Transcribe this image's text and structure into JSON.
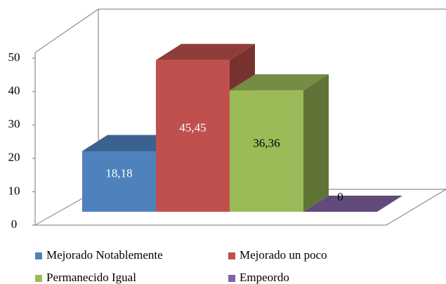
{
  "chart_data": {
    "type": "bar3d",
    "series": [
      {
        "name": "Mejorado Notablemente",
        "color": "#4f81bd",
        "values": [
          18.18
        ],
        "value_labels": [
          "18,18"
        ],
        "label_color": "#ffffff"
      },
      {
        "name": "Mejorado un poco",
        "color": "#c0504d",
        "values": [
          45.45
        ],
        "value_labels": [
          "45,45"
        ],
        "label_color": "#ffffff"
      },
      {
        "name": "Permanecido Igual",
        "color": "#9bbb59",
        "values": [
          36.36
        ],
        "value_labels": [
          "36,36"
        ],
        "label_color": "#000000"
      },
      {
        "name": "Empeordo",
        "color": "#8064a2",
        "values": [
          0
        ],
        "value_labels": [
          "0"
        ],
        "label_color": "#000000"
      }
    ],
    "ylim": [
      0,
      50
    ],
    "yticks": [
      0,
      10,
      20,
      30,
      40,
      50
    ],
    "grid": false
  }
}
